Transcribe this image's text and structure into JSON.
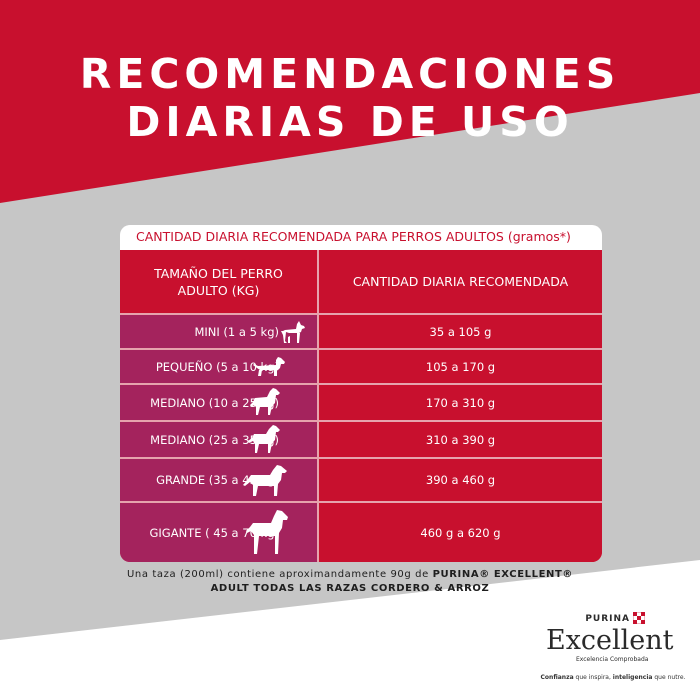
{
  "title": {
    "line1": "RECOMENDACIONES",
    "line2": "DIARIAS DE USO"
  },
  "table": {
    "header": "CANTIDAD DIARIA RECOMENDADA PARA PERROS ADULTOS (gramos*)",
    "col1": "TAMAÑO DEL PERRO ADULTO (KG)",
    "col2": "CANTIDAD DIARIA RECOMENDADA",
    "rows": [
      {
        "size": "MINI (1 a 5 kg)",
        "amount": "35 a 105 g",
        "icon": "small-terrier-dog-icon"
      },
      {
        "size": "PEQUEÑO (5 a 10 kg)",
        "amount": "105 a 170 g",
        "icon": "dachshund-dog-icon"
      },
      {
        "size": "MEDIANO (10 a 25 kg)",
        "amount": "170 a 310 g",
        "icon": "spaniel-dog-icon"
      },
      {
        "size": "MEDIANO (25 a 35 kg)",
        "amount": "310 a 390 g",
        "icon": "setter-dog-icon"
      },
      {
        "size": "GRANDE (35 a 45 kg)",
        "amount": "390 a 460 g",
        "icon": "retriever-dog-icon"
      },
      {
        "size": "GIGANTE ( 45 a 70 kg)",
        "amount": "460 g a 620 g",
        "icon": "rottweiler-dog-icon"
      }
    ]
  },
  "footnote": {
    "line1_prefix": "Una taza (200ml) contiene aproximandamente 90g de ",
    "line1_brand": "PURINA® EXCELLENT®",
    "line2": "ADULT TODAS LAS RAZAS CORDERO & ARROZ"
  },
  "logo": {
    "purina": "PURINA",
    "name": "Excellent",
    "subtitle": "Excelencia Comprobada",
    "tagline_1": "Confianza",
    "tagline_2": " que inspira, ",
    "tagline_3": "inteligencia",
    "tagline_4": " que nutre."
  },
  "colors": {
    "brand_red": "#c8102e",
    "row_purple": "#a4235d",
    "background_gray": "#c6c6c6"
  }
}
